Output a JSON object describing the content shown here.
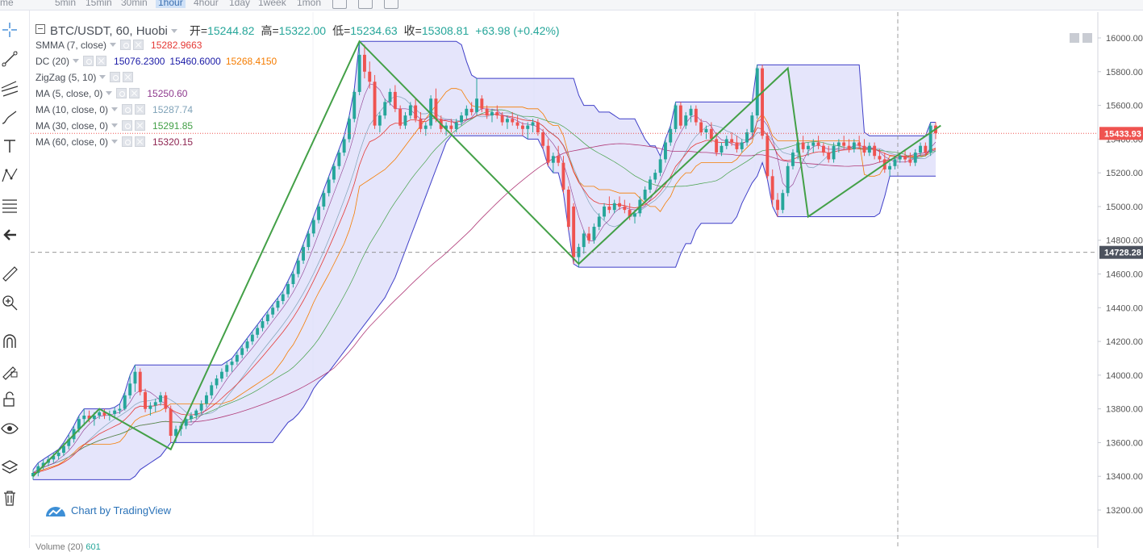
{
  "toolbar": {
    "timeframes": [
      "me",
      "5min",
      "15min",
      "30min",
      "1hour",
      "4hour",
      "1day",
      "1week",
      "1mon"
    ],
    "timeframes_display": [
      "me",
      "5min",
      "15min",
      "30min",
      "1hour",
      "4hour",
      "1day",
      "1week",
      "1mon"
    ],
    "active_timeframe": "1hour"
  },
  "left_tools": [
    "crosshair-icon",
    "trend-line-icon",
    "pitchfork-icon",
    "brush-icon",
    "text-icon",
    "pattern-icon",
    "fib-icon",
    "back-icon",
    "ruler-icon",
    "zoom-in-icon",
    "magnet-icon",
    "lock-drawing-icon",
    "unlock-icon",
    "eye-icon",
    "layers-icon",
    "trash-icon"
  ],
  "legend": {
    "symbol": "BTC/USDT, 60, Huobi",
    "open_label": "开=",
    "open": "15244.82",
    "high_label": "高=",
    "high": "15322.00",
    "low_label": "低=",
    "low": "15234.63",
    "close_label": "收=",
    "close": "15308.81",
    "change": "+63.98 (+0.42%)",
    "indicators": [
      {
        "name": "SMMA (7, close)",
        "values": [
          {
            "v": "15282.9663",
            "color": "#e53935"
          }
        ]
      },
      {
        "name": "DC (20)",
        "values": [
          {
            "v": "15076.2300",
            "color": "#1a1aa6"
          },
          {
            "v": "15460.6000",
            "color": "#1a1aa6"
          },
          {
            "v": "15268.4150",
            "color": "#f57c00"
          }
        ]
      },
      {
        "name": "ZigZag (5, 10)",
        "values": []
      },
      {
        "name": "MA (5, close, 0)",
        "values": [
          {
            "v": "15250.60",
            "color": "#8e3a8e"
          }
        ]
      },
      {
        "name": "MA (10, close, 0)",
        "values": [
          {
            "v": "15287.74",
            "color": "#7fa2b8"
          }
        ]
      },
      {
        "name": "MA (30, close, 0)",
        "values": [
          {
            "v": "15291.85",
            "color": "#43a047"
          }
        ]
      },
      {
        "name": "MA (60, close, 0)",
        "values": [
          {
            "v": "15320.15",
            "color": "#8e2451"
          }
        ]
      }
    ]
  },
  "price_axis": {
    "ticks": [
      "16000.00",
      "15800.00",
      "15600.00",
      "15400.00",
      "15200.00",
      "15000.00",
      "14800.00",
      "14600.00",
      "14400.00",
      "14200.00",
      "14000.00",
      "13800.00",
      "13600.00",
      "13400.00",
      "13200.00"
    ],
    "last_price_label": "15433.93",
    "crosshair_price_label": "14728.28"
  },
  "watermark": "Chart by TradingView",
  "volume_label": "Volume (20)",
  "volume_value": "601",
  "colors": {
    "up": "#26a69a",
    "down": "#ef5350",
    "dc_fill": "#dcdcfa",
    "dc_band": "#3f3fc8",
    "zigzag": "#43a047"
  },
  "chart_data": {
    "type": "candlestick",
    "y_range": [
      13200,
      16000
    ],
    "candles": [
      [
        13400,
        13440,
        13380,
        13420
      ],
      [
        13420,
        13480,
        13400,
        13460
      ],
      [
        13460,
        13500,
        13440,
        13480
      ],
      [
        13480,
        13520,
        13460,
        13500
      ],
      [
        13500,
        13540,
        13480,
        13520
      ],
      [
        13520,
        13560,
        13500,
        13540
      ],
      [
        13540,
        13600,
        13520,
        13580
      ],
      [
        13580,
        13650,
        13560,
        13620
      ],
      [
        13620,
        13700,
        13600,
        13680
      ],
      [
        13680,
        13760,
        13660,
        13740
      ],
      [
        13740,
        13800,
        13700,
        13760
      ],
      [
        13760,
        13790,
        13720,
        13740
      ],
      [
        13740,
        13780,
        13700,
        13760
      ],
      [
        13760,
        13800,
        13740,
        13780
      ],
      [
        13780,
        13800,
        13740,
        13760
      ],
      [
        13760,
        13790,
        13730,
        13770
      ],
      [
        13770,
        13810,
        13750,
        13790
      ],
      [
        13790,
        13830,
        13770,
        13800
      ],
      [
        13800,
        13900,
        13790,
        13880
      ],
      [
        13880,
        14000,
        13860,
        13950
      ],
      [
        13950,
        14060,
        13900,
        14020
      ],
      [
        14020,
        14040,
        13880,
        13900
      ],
      [
        13900,
        13920,
        13780,
        13800
      ],
      [
        13800,
        13840,
        13760,
        13820
      ],
      [
        13820,
        13860,
        13780,
        13840
      ],
      [
        13840,
        13900,
        13820,
        13880
      ],
      [
        13880,
        13900,
        13780,
        13800
      ],
      [
        13800,
        13820,
        13600,
        13640
      ],
      [
        13640,
        13700,
        13600,
        13680
      ],
      [
        13680,
        13720,
        13640,
        13700
      ],
      [
        13700,
        13760,
        13680,
        13740
      ],
      [
        13740,
        13780,
        13720,
        13760
      ],
      [
        13760,
        13800,
        13740,
        13790
      ],
      [
        13790,
        13850,
        13770,
        13830
      ],
      [
        13830,
        13900,
        13810,
        13880
      ],
      [
        13880,
        13960,
        13860,
        13940
      ],
      [
        13940,
        14000,
        13920,
        13980
      ],
      [
        13980,
        14040,
        13960,
        14020
      ],
      [
        14020,
        14080,
        13990,
        14060
      ],
      [
        14060,
        14100,
        14020,
        14080
      ],
      [
        14080,
        14140,
        14060,
        14120
      ],
      [
        14120,
        14180,
        14100,
        14160
      ],
      [
        14160,
        14220,
        14140,
        14200
      ],
      [
        14200,
        14260,
        14180,
        14240
      ],
      [
        14240,
        14300,
        14220,
        14280
      ],
      [
        14280,
        14340,
        14260,
        14320
      ],
      [
        14320,
        14380,
        14300,
        14360
      ],
      [
        14360,
        14420,
        14340,
        14400
      ],
      [
        14400,
        14460,
        14380,
        14440
      ],
      [
        14440,
        14500,
        14420,
        14480
      ],
      [
        14480,
        14560,
        14460,
        14540
      ],
      [
        14540,
        14620,
        14520,
        14600
      ],
      [
        14600,
        14700,
        14580,
        14680
      ],
      [
        14680,
        14780,
        14660,
        14760
      ],
      [
        14760,
        14860,
        14740,
        14840
      ],
      [
        14840,
        14940,
        14820,
        14920
      ],
      [
        14920,
        15020,
        14900,
        15000
      ],
      [
        15000,
        15100,
        14980,
        15080
      ],
      [
        15080,
        15180,
        15060,
        15160
      ],
      [
        15160,
        15260,
        15140,
        15240
      ],
      [
        15240,
        15340,
        15220,
        15320
      ],
      [
        15320,
        15420,
        15300,
        15400
      ],
      [
        15400,
        15540,
        15380,
        15520
      ],
      [
        15520,
        15700,
        15500,
        15680
      ],
      [
        15680,
        15980,
        15660,
        15900
      ],
      [
        15900,
        15960,
        15760,
        15800
      ],
      [
        15800,
        15860,
        15700,
        15740
      ],
      [
        15740,
        15780,
        15460,
        15480
      ],
      [
        15480,
        15560,
        15440,
        15540
      ],
      [
        15540,
        15640,
        15520,
        15620
      ],
      [
        15620,
        15700,
        15600,
        15680
      ],
      [
        15680,
        15720,
        15560,
        15580
      ],
      [
        15580,
        15600,
        15460,
        15480
      ],
      [
        15480,
        15560,
        15460,
        15540
      ],
      [
        15540,
        15620,
        15520,
        15600
      ],
      [
        15600,
        15640,
        15500,
        15520
      ],
      [
        15520,
        15560,
        15440,
        15460
      ],
      [
        15460,
        15500,
        15420,
        15480
      ],
      [
        15480,
        15660,
        15460,
        15640
      ],
      [
        15640,
        15700,
        15500,
        15520
      ],
      [
        15520,
        15540,
        15440,
        15460
      ],
      [
        15460,
        15500,
        15420,
        15480
      ],
      [
        15480,
        15520,
        15440,
        15460
      ],
      [
        15460,
        15520,
        15440,
        15500
      ],
      [
        15500,
        15560,
        15480,
        15540
      ],
      [
        15540,
        15600,
        15520,
        15580
      ],
      [
        15580,
        15620,
        15540,
        15560
      ],
      [
        15560,
        15760,
        15540,
        15640
      ],
      [
        15640,
        15660,
        15560,
        15580
      ],
      [
        15580,
        15600,
        15520,
        15540
      ],
      [
        15540,
        15580,
        15500,
        15560
      ],
      [
        15560,
        15600,
        15520,
        15540
      ],
      [
        15540,
        15560,
        15480,
        15500
      ],
      [
        15500,
        15540,
        15460,
        15520
      ],
      [
        15520,
        15560,
        15480,
        15500
      ],
      [
        15500,
        15540,
        15460,
        15480
      ],
      [
        15480,
        15500,
        15420,
        15460
      ],
      [
        15460,
        15500,
        15400,
        15480
      ],
      [
        15480,
        15520,
        15440,
        15500
      ],
      [
        15500,
        15520,
        15420,
        15440
      ],
      [
        15440,
        15460,
        15340,
        15360
      ],
      [
        15360,
        15400,
        15240,
        15260
      ],
      [
        15260,
        15320,
        15200,
        15300
      ],
      [
        15300,
        15360,
        15240,
        15260
      ],
      [
        15260,
        15300,
        15080,
        15100
      ],
      [
        15100,
        15120,
        14860,
        14880
      ],
      [
        15000,
        15020,
        14660,
        14700
      ],
      [
        14700,
        14780,
        14640,
        14760
      ],
      [
        14760,
        14860,
        14720,
        14840
      ],
      [
        14840,
        14880,
        14780,
        14800
      ],
      [
        14800,
        14900,
        14780,
        14880
      ],
      [
        14880,
        14960,
        14860,
        14940
      ],
      [
        14940,
        15020,
        14920,
        15000
      ],
      [
        15000,
        15060,
        14960,
        14980
      ],
      [
        14980,
        15040,
        14960,
        15020
      ],
      [
        15020,
        15060,
        14980,
        15000
      ],
      [
        15000,
        15040,
        14960,
        14980
      ],
      [
        14980,
        15020,
        14920,
        14940
      ],
      [
        14940,
        14980,
        14900,
        14960
      ],
      [
        14960,
        15060,
        14940,
        15040
      ],
      [
        15040,
        15120,
        15020,
        15100
      ],
      [
        15100,
        15180,
        15080,
        15160
      ],
      [
        15160,
        15220,
        15140,
        15200
      ],
      [
        15200,
        15300,
        15180,
        15280
      ],
      [
        15280,
        15400,
        15260,
        15380
      ],
      [
        15380,
        15480,
        15360,
        15460
      ],
      [
        15460,
        15620,
        15440,
        15600
      ],
      [
        15600,
        15620,
        15460,
        15480
      ],
      [
        15480,
        15560,
        15460,
        15540
      ],
      [
        15540,
        15600,
        15500,
        15580
      ],
      [
        15580,
        15600,
        15480,
        15500
      ],
      [
        15500,
        15520,
        15420,
        15440
      ],
      [
        15440,
        15480,
        15400,
        15460
      ],
      [
        15460,
        15500,
        15380,
        15400
      ],
      [
        15400,
        15440,
        15300,
        15320
      ],
      [
        15320,
        15380,
        15300,
        15360
      ],
      [
        15360,
        15420,
        15340,
        15400
      ],
      [
        15400,
        15440,
        15360,
        15380
      ],
      [
        15380,
        15420,
        15320,
        15340
      ],
      [
        15340,
        15400,
        15320,
        15380
      ],
      [
        15380,
        15460,
        15360,
        15440
      ],
      [
        15440,
        15560,
        15420,
        15540
      ],
      [
        15540,
        15840,
        15520,
        15820
      ],
      [
        15820,
        15840,
        15400,
        15420
      ],
      [
        15420,
        15440,
        15160,
        15180
      ],
      [
        15180,
        15220,
        15000,
        15040
      ],
      [
        15040,
        15080,
        14940,
        14980
      ],
      [
        14980,
        15100,
        14960,
        15080
      ],
      [
        15080,
        15260,
        15060,
        15240
      ],
      [
        15240,
        15340,
        15220,
        15320
      ],
      [
        15320,
        15400,
        15280,
        15380
      ],
      [
        15380,
        15420,
        15320,
        15340
      ],
      [
        15340,
        15380,
        15300,
        15360
      ],
      [
        15360,
        15400,
        15320,
        15380
      ],
      [
        15380,
        15420,
        15340,
        15360
      ],
      [
        15360,
        15380,
        15300,
        15320
      ],
      [
        15320,
        15360,
        15260,
        15280
      ],
      [
        15280,
        15380,
        15260,
        15360
      ],
      [
        15360,
        15400,
        15320,
        15380
      ],
      [
        15380,
        15420,
        15340,
        15360
      ],
      [
        15360,
        15400,
        15320,
        15340
      ],
      [
        15340,
        15400,
        15320,
        15380
      ],
      [
        15380,
        15420,
        15340,
        15360
      ],
      [
        15360,
        15400,
        15300,
        15320
      ],
      [
        15320,
        15380,
        15300,
        15360
      ],
      [
        15360,
        15380,
        15280,
        15300
      ],
      [
        15300,
        15340,
        15260,
        15280
      ],
      [
        15280,
        15320,
        15200,
        15220
      ],
      [
        15220,
        15260,
        15180,
        15240
      ],
      [
        15240,
        15300,
        15220,
        15280
      ],
      [
        15280,
        15320,
        15260,
        15300
      ],
      [
        15300,
        15340,
        15260,
        15280
      ],
      [
        15280,
        15320,
        15240,
        15260
      ],
      [
        15260,
        15340,
        15240,
        15320
      ],
      [
        15320,
        15380,
        15300,
        15360
      ],
      [
        15360,
        15380,
        15300,
        15320
      ],
      [
        15320,
        15500,
        15300,
        15480
      ],
      [
        15480,
        15500,
        15400,
        15434
      ]
    ],
    "zigzag_points": [
      [
        0,
        13400
      ],
      [
        13,
        13800
      ],
      [
        27,
        13560
      ],
      [
        64,
        15980
      ],
      [
        107,
        14660
      ],
      [
        148,
        15820
      ],
      [
        152,
        14940
      ],
      [
        178,
        15480
      ]
    ]
  }
}
